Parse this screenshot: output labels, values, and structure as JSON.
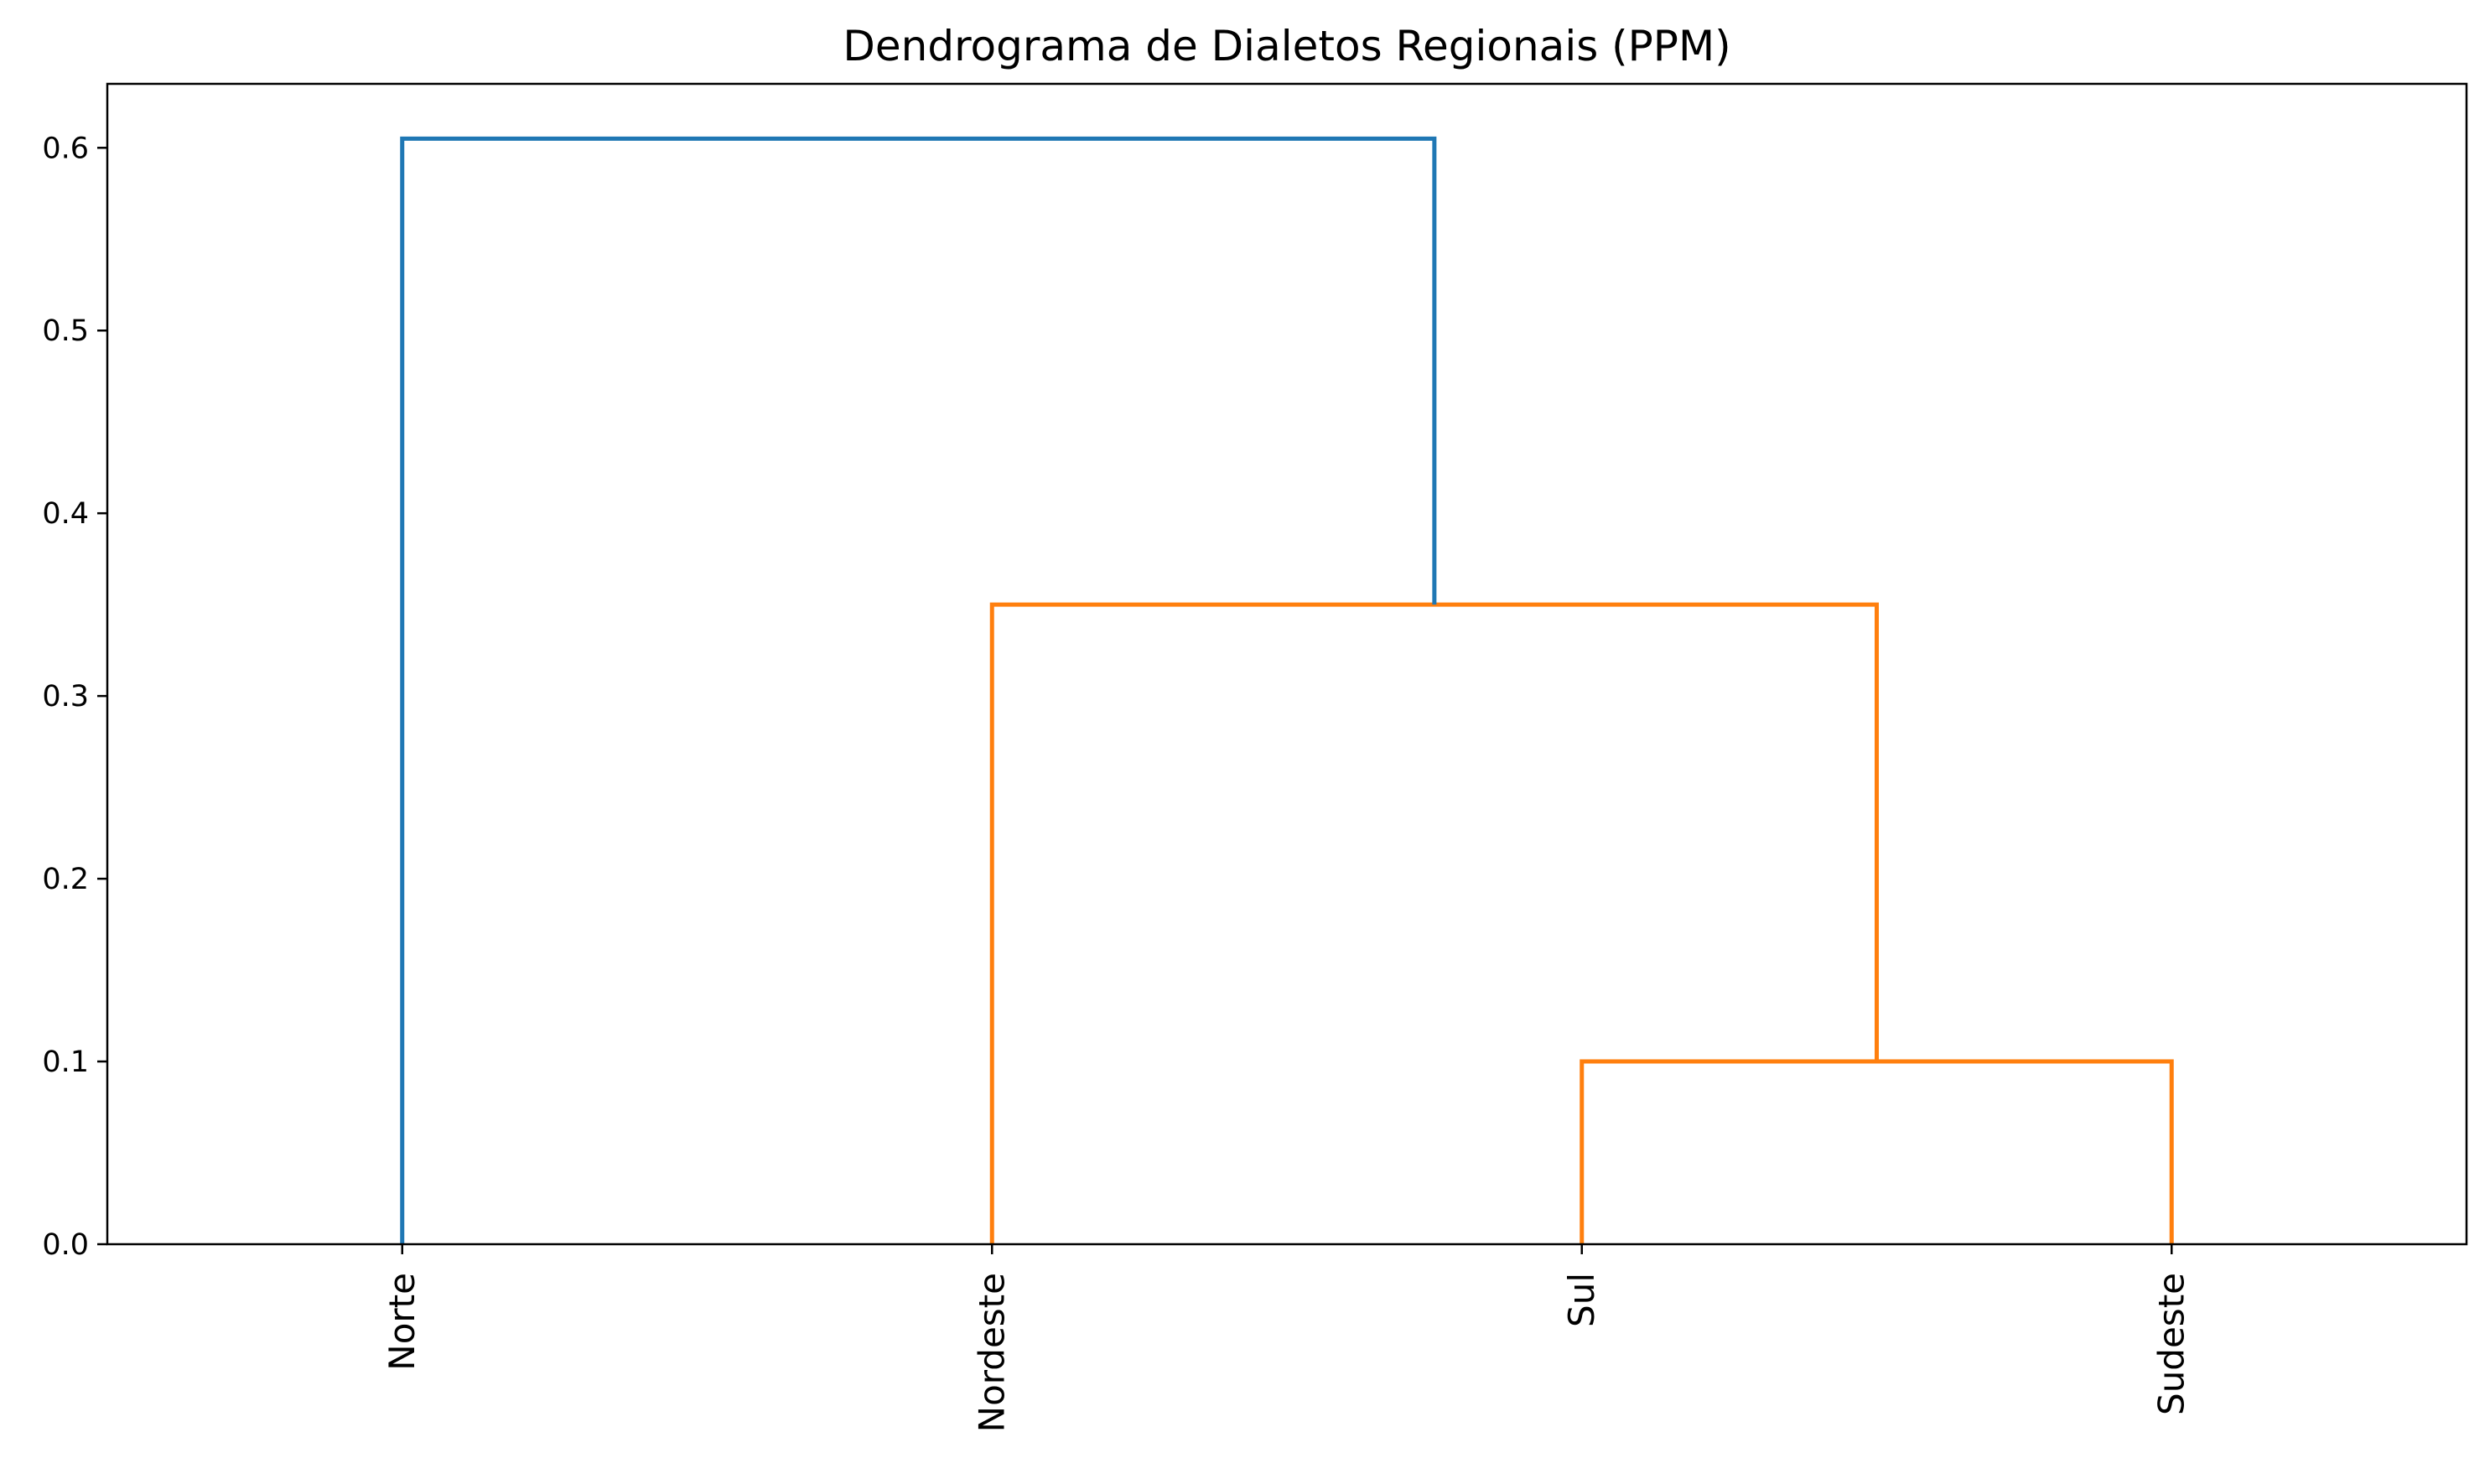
{
  "chart_data": {
    "type": "dendrogram",
    "title": "Dendrograma de Dialetos Regionais (PPM)",
    "xlabel": "",
    "ylabel": "",
    "leaves": [
      "Norte",
      "Nordeste",
      "Sul",
      "Sudeste"
    ],
    "ylim": [
      0,
      0.635
    ],
    "yticks": [
      0.0,
      0.1,
      0.2,
      0.3,
      0.4,
      0.5,
      0.6
    ],
    "ytick_labels": [
      "0.0",
      "0.1",
      "0.2",
      "0.3",
      "0.4",
      "0.5",
      "0.6"
    ],
    "xtick_rotation": 90,
    "grid": false,
    "links": [
      {
        "left": 2,
        "right": 3,
        "height": 0.1,
        "color": "#ff7f0e"
      },
      {
        "left": 1,
        "right": "link-0",
        "height": 0.35,
        "color": "#ff7f0e"
      },
      {
        "left": 0,
        "right": "link-1",
        "height": 0.605,
        "color": "#1f77b4"
      }
    ]
  }
}
